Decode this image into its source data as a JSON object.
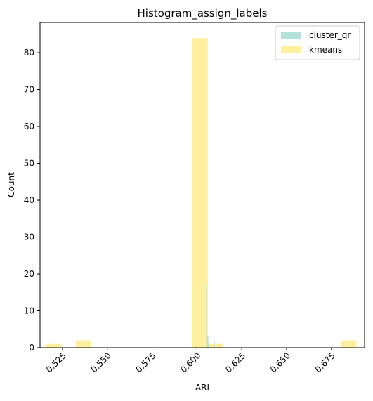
{
  "chart_data": {
    "type": "bar",
    "title": "Histogram_assign_labels",
    "xlabel": "ARI",
    "ylabel": "Count",
    "xlim": [
      0.5125,
      0.6935
    ],
    "ylim": [
      0,
      88.2
    ],
    "x_ticks": [
      {
        "value": 0.525,
        "label": "0.525"
      },
      {
        "value": 0.55,
        "label": "0.550"
      },
      {
        "value": 0.575,
        "label": "0.575"
      },
      {
        "value": 0.6,
        "label": "0.600"
      },
      {
        "value": 0.625,
        "label": "0.625"
      },
      {
        "value": 0.65,
        "label": "0.650"
      },
      {
        "value": 0.675,
        "label": "0.675"
      }
    ],
    "y_ticks": [
      {
        "value": 0,
        "label": "0"
      },
      {
        "value": 10,
        "label": "10"
      },
      {
        "value": 20,
        "label": "20"
      },
      {
        "value": 30,
        "label": "30"
      },
      {
        "value": 40,
        "label": "40"
      },
      {
        "value": 50,
        "label": "50"
      },
      {
        "value": 60,
        "label": "60"
      },
      {
        "value": 70,
        "label": "70"
      },
      {
        "value": 80,
        "label": "80"
      }
    ],
    "legend_position": "top-right",
    "grid": false,
    "series": [
      {
        "name": "cluster_qr",
        "color": "#a6ddd1",
        "opacity": 0.85,
        "bins": [
          {
            "x0": 0.6052,
            "x1": 0.6058,
            "count": 17
          },
          {
            "x0": 0.6058,
            "x1": 0.6064,
            "count": 3
          },
          {
            "x0": 0.6064,
            "x1": 0.607,
            "count": 1
          },
          {
            "x0": 0.6093,
            "x1": 0.6099,
            "count": 2
          }
        ]
      },
      {
        "name": "kmeans",
        "color": "#fff0a0",
        "opacity": 1.0,
        "bins": [
          {
            "x0": 0.516,
            "x1": 0.5245,
            "count": 1
          },
          {
            "x0": 0.5325,
            "x1": 0.541,
            "count": 2
          },
          {
            "x0": 0.5975,
            "x1": 0.606,
            "count": 84
          },
          {
            "x0": 0.606,
            "x1": 0.6145,
            "count": 1
          },
          {
            "x0": 0.6805,
            "x1": 0.689,
            "count": 2
          }
        ]
      }
    ]
  }
}
